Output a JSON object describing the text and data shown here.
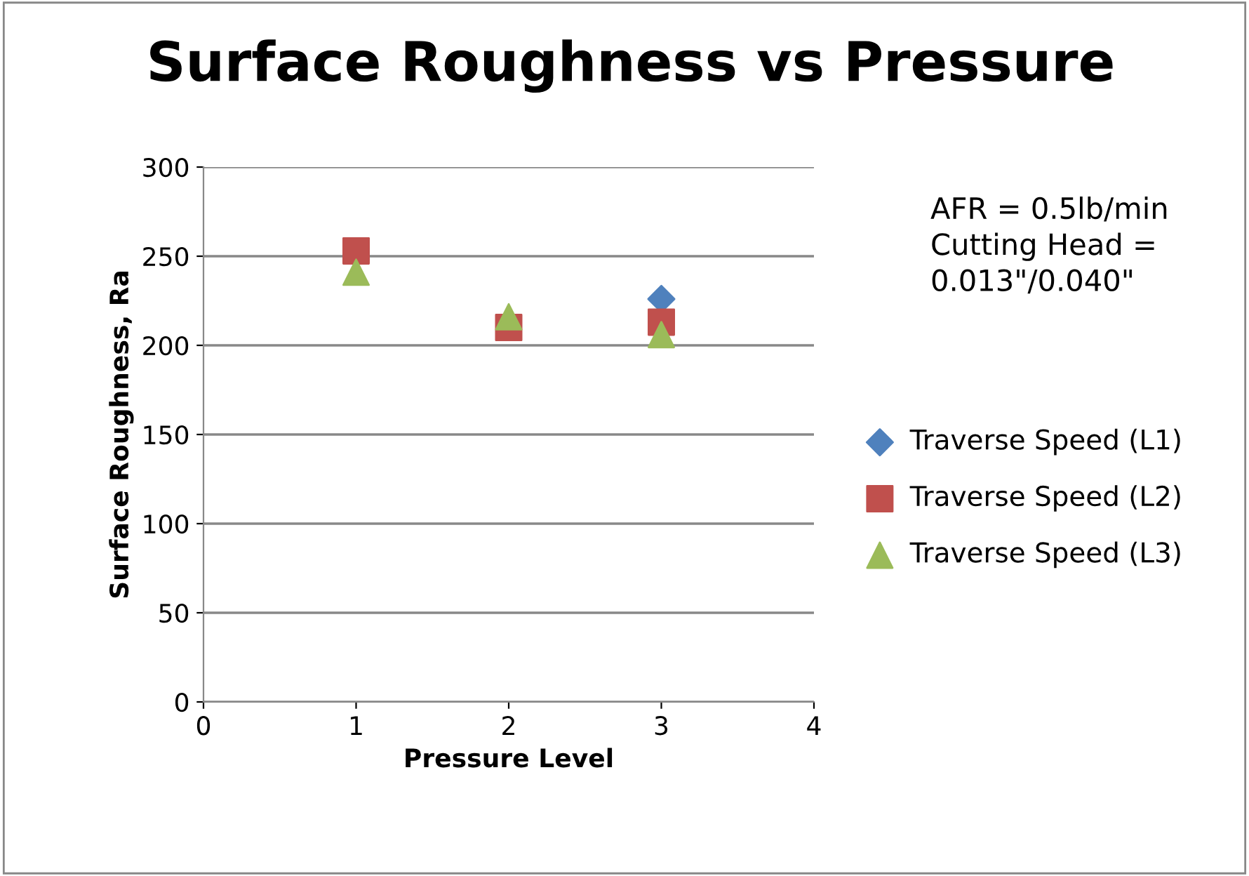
{
  "chart_data": {
    "type": "scatter",
    "title": "Surface Roughness vs Pressure",
    "xlabel": "Pressure Level",
    "ylabel": "Surface Roughness, Ra",
    "annotations": [
      "AFR = 0.5lb/min\nCutting Head =\n0.013\"/0.040\""
    ],
    "xlim": [
      0,
      4
    ],
    "xticks": [
      0,
      1,
      2,
      3,
      4
    ],
    "ylim": [
      0,
      300
    ],
    "yticks": [
      0,
      50,
      100,
      150,
      200,
      250,
      300
    ],
    "grid": "y",
    "legend": "right",
    "series": [
      {
        "name": "Traverse Speed (L1)",
        "color": "#4f81bd",
        "marker": "diamond",
        "x": [
          3
        ],
        "values": [
          226
        ]
      },
      {
        "name": "Traverse Speed (L2)",
        "color": "#c0504d",
        "marker": "square",
        "x": [
          1,
          2,
          3
        ],
        "values": [
          253,
          210,
          213
        ]
      },
      {
        "name": "Traverse Speed (L3)",
        "color": "#9bbb59",
        "marker": "triangle",
        "x": [
          1,
          2,
          3
        ],
        "values": [
          241,
          216,
          206
        ]
      }
    ]
  }
}
